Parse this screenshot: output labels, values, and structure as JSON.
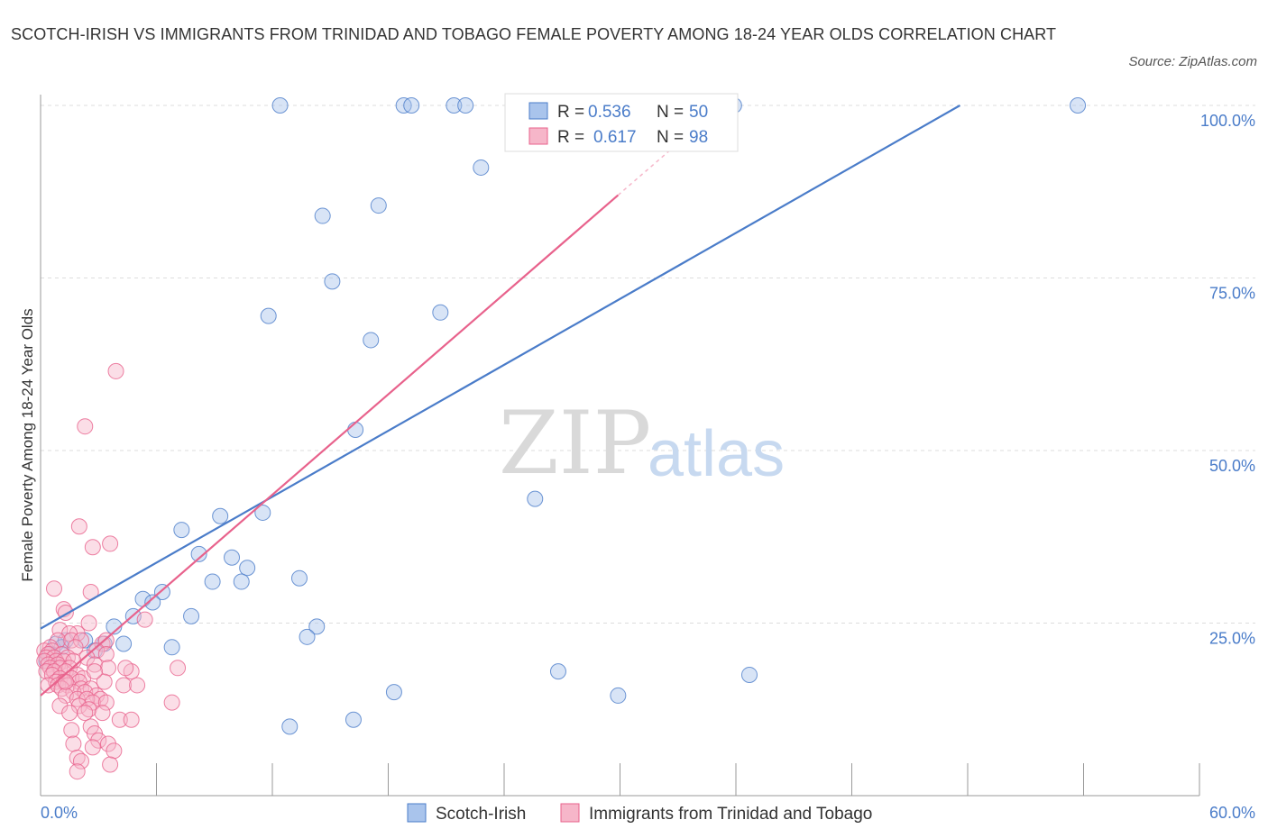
{
  "title": "SCOTCH-IRISH VS IMMIGRANTS FROM TRINIDAD AND TOBAGO FEMALE POVERTY AMONG 18-24 YEAR OLDS CORRELATION CHART",
  "source": "Source: ZipAtlas.com",
  "watermark": {
    "zip": "ZIP",
    "atlas": "atlas"
  },
  "chart_data": {
    "type": "scatter",
    "title": "SCOTCH-IRISH VS IMMIGRANTS FROM TRINIDAD AND TOBAGO FEMALE POVERTY AMONG 18-24 YEAR OLDS CORRELATION CHART",
    "xlabel": "",
    "ylabel": "Female Poverty Among 18-24 Year Olds",
    "xlim": [
      0,
      60
    ],
    "ylim": [
      0,
      100
    ],
    "x_tick_labels": [
      "0.0%",
      "60.0%"
    ],
    "y_ticks": [
      25,
      50,
      75,
      100
    ],
    "y_tick_labels": [
      "25.0%",
      "50.0%",
      "75.0%",
      "100.0%"
    ],
    "grid": true,
    "legend_position": "top-center",
    "colors": {
      "scotch_irish": "#4a7cc9",
      "trinidad": "#e8628c",
      "scotch_irish_fill": "#a9c4ec",
      "trinidad_fill": "#f6b6c9"
    },
    "stats": [
      {
        "r_label": "R =",
        "r": "0.536",
        "n_label": "N =",
        "n": "50"
      },
      {
        "r_label": "R =",
        "r": "0.617",
        "n_label": "N =",
        "n": "98"
      }
    ],
    "series": [
      {
        "name": "Scotch-Irish",
        "trend": {
          "x": [
            0,
            47.6
          ],
          "y": [
            24.2,
            100
          ]
        },
        "points": [
          [
            12.4,
            100
          ],
          [
            18.8,
            100
          ],
          [
            19.2,
            100
          ],
          [
            21.4,
            100
          ],
          [
            22.0,
            100
          ],
          [
            35.9,
            100
          ],
          [
            53.7,
            100
          ],
          [
            22.8,
            91.0
          ],
          [
            14.6,
            84.0
          ],
          [
            17.5,
            85.5
          ],
          [
            15.1,
            74.5
          ],
          [
            11.8,
            69.5
          ],
          [
            20.7,
            70.0
          ],
          [
            17.1,
            66.0
          ],
          [
            16.3,
            53.0
          ],
          [
            25.6,
            43.0
          ],
          [
            11.5,
            41.0
          ],
          [
            9.3,
            40.5
          ],
          [
            7.3,
            38.5
          ],
          [
            8.2,
            35.0
          ],
          [
            9.9,
            34.5
          ],
          [
            10.7,
            33.0
          ],
          [
            13.4,
            31.5
          ],
          [
            8.9,
            31.0
          ],
          [
            10.4,
            31.0
          ],
          [
            6.3,
            29.5
          ],
          [
            5.3,
            28.5
          ],
          [
            5.8,
            28.0
          ],
          [
            4.8,
            26.0
          ],
          [
            7.8,
            26.0
          ],
          [
            3.8,
            24.5
          ],
          [
            14.3,
            24.5
          ],
          [
            13.8,
            23.0
          ],
          [
            0.8,
            22.0
          ],
          [
            1.3,
            22.5
          ],
          [
            2.3,
            22.5
          ],
          [
            3.3,
            22.0
          ],
          [
            4.3,
            22.0
          ],
          [
            6.8,
            21.5
          ],
          [
            1.1,
            21.5
          ],
          [
            2.8,
            21.0
          ],
          [
            0.5,
            20.5
          ],
          [
            0.7,
            20.0
          ],
          [
            0.3,
            19.5
          ],
          [
            26.8,
            18.0
          ],
          [
            36.7,
            17.5
          ],
          [
            18.3,
            15.0
          ],
          [
            29.9,
            14.5
          ],
          [
            16.2,
            11.0
          ],
          [
            12.9,
            10.0
          ]
        ]
      },
      {
        "name": "Immigrants from Trinidad and Tobago",
        "trend": {
          "x": [
            0,
            29.9
          ],
          "y": [
            14.5,
            87
          ],
          "dashed_to": {
            "x": 33.2,
            "y": 95
          }
        },
        "points": [
          [
            28.2,
            100
          ],
          [
            3.9,
            61.5
          ],
          [
            2.3,
            53.5
          ],
          [
            2.0,
            39.0
          ],
          [
            2.7,
            36.0
          ],
          [
            3.6,
            36.5
          ],
          [
            0.7,
            30.0
          ],
          [
            2.6,
            29.5
          ],
          [
            1.2,
            27.0
          ],
          [
            1.3,
            26.5
          ],
          [
            2.5,
            25.0
          ],
          [
            5.4,
            25.5
          ],
          [
            1.0,
            24.0
          ],
          [
            1.9,
            23.5
          ],
          [
            1.5,
            23.5
          ],
          [
            0.9,
            22.5
          ],
          [
            1.6,
            22.5
          ],
          [
            2.1,
            22.5
          ],
          [
            3.2,
            22.0
          ],
          [
            3.4,
            22.5
          ],
          [
            0.5,
            21.5
          ],
          [
            1.8,
            21.5
          ],
          [
            0.2,
            21.0
          ],
          [
            0.6,
            21.0
          ],
          [
            2.9,
            21.0
          ],
          [
            0.4,
            20.5
          ],
          [
            1.1,
            20.5
          ],
          [
            3.4,
            20.5
          ],
          [
            0.3,
            20.0
          ],
          [
            0.7,
            20.0
          ],
          [
            1.4,
            20.0
          ],
          [
            2.4,
            20.0
          ],
          [
            0.2,
            19.5
          ],
          [
            0.8,
            19.5
          ],
          [
            1.2,
            19.5
          ],
          [
            1.7,
            19.5
          ],
          [
            2.8,
            19.0
          ],
          [
            0.4,
            19.0
          ],
          [
            0.9,
            19.0
          ],
          [
            0.5,
            18.5
          ],
          [
            1.0,
            18.5
          ],
          [
            1.5,
            18.5
          ],
          [
            3.5,
            18.5
          ],
          [
            7.1,
            18.5
          ],
          [
            0.3,
            18.0
          ],
          [
            0.7,
            18.0
          ],
          [
            1.3,
            18.0
          ],
          [
            4.7,
            18.0
          ],
          [
            0.6,
            17.5
          ],
          [
            1.9,
            17.5
          ],
          [
            1.0,
            17.0
          ],
          [
            1.6,
            17.0
          ],
          [
            2.2,
            17.0
          ],
          [
            0.8,
            16.5
          ],
          [
            1.2,
            16.5
          ],
          [
            2.0,
            16.5
          ],
          [
            3.3,
            16.5
          ],
          [
            4.3,
            16.0
          ],
          [
            0.4,
            16.0
          ],
          [
            0.9,
            16.0
          ],
          [
            1.4,
            16.0
          ],
          [
            2.1,
            15.5
          ],
          [
            2.6,
            15.5
          ],
          [
            1.1,
            15.5
          ],
          [
            1.7,
            15.0
          ],
          [
            2.3,
            15.0
          ],
          [
            2.9,
            14.5
          ],
          [
            1.3,
            14.5
          ],
          [
            1.9,
            14.0
          ],
          [
            3.1,
            14.0
          ],
          [
            2.4,
            14.0
          ],
          [
            2.7,
            13.5
          ],
          [
            3.4,
            13.5
          ],
          [
            6.8,
            13.5
          ],
          [
            1.0,
            13.0
          ],
          [
            2.0,
            13.0
          ],
          [
            2.5,
            12.5
          ],
          [
            1.5,
            12.0
          ],
          [
            2.3,
            12.0
          ],
          [
            3.2,
            12.0
          ],
          [
            4.1,
            11.0
          ],
          [
            4.7,
            11.0
          ],
          [
            2.6,
            10.0
          ],
          [
            1.6,
            9.5
          ],
          [
            2.8,
            9.0
          ],
          [
            3.0,
            8.0
          ],
          [
            1.7,
            7.5
          ],
          [
            3.5,
            7.5
          ],
          [
            3.8,
            6.5
          ],
          [
            1.9,
            5.5
          ],
          [
            2.1,
            5.0
          ],
          [
            3.6,
            4.5
          ],
          [
            1.9,
            3.5
          ],
          [
            2.7,
            7.0
          ],
          [
            4.4,
            18.5
          ],
          [
            5.0,
            16.0
          ],
          [
            1.3,
            16.5
          ],
          [
            2.8,
            18.0
          ]
        ]
      }
    ]
  },
  "legend": {
    "items": [
      {
        "label": "Scotch-Irish"
      },
      {
        "label": "Immigrants from Trinidad and Tobago"
      }
    ]
  }
}
